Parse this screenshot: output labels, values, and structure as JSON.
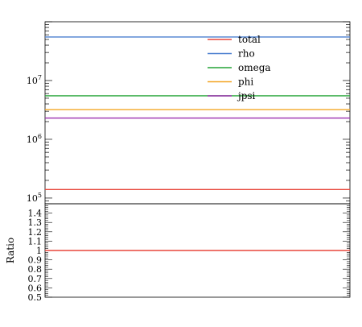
{
  "chart_data": [
    {
      "type": "line",
      "panel": "main",
      "yscale": "log",
      "ylim": [
        80000,
        100000000
      ],
      "yticks_major": [
        {
          "value": 100000,
          "base": "10",
          "exp": "5"
        },
        {
          "value": 1000000,
          "base": "10",
          "exp": "6"
        },
        {
          "value": 10000000,
          "base": "10",
          "exp": "7"
        }
      ],
      "legend_position": "top-center",
      "series": [
        {
          "name": "total",
          "color": "#e8473b",
          "value": 140000
        },
        {
          "name": "rho",
          "color": "#4a7fcf",
          "value": 55000000
        },
        {
          "name": "omega",
          "color": "#23a436",
          "value": 5500000
        },
        {
          "name": "phi",
          "color": "#f4a623",
          "value": 3200000
        },
        {
          "name": "jpsi",
          "color": "#9b2fae",
          "value": 2300000
        }
      ]
    },
    {
      "type": "line",
      "panel": "ratio",
      "ylabel": "Ratio",
      "ylim": [
        0.5,
        1.5
      ],
      "yticks": [
        "0.5",
        "0.6",
        "0.7",
        "0.8",
        "0.9",
        "1",
        "1.1",
        "1.2",
        "1.3",
        "1.4"
      ],
      "series": [
        {
          "color": "#e8473b",
          "value": 1.0
        }
      ]
    }
  ]
}
